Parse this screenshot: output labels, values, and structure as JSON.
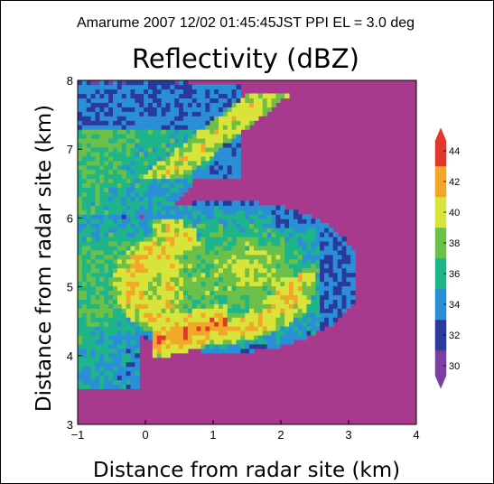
{
  "chart_data": {
    "type": "heatmap",
    "suptitle": "Amarume 2007 12/02 01:45:45JST PPI EL = 3.0 deg",
    "title": "Reflectivity (dBZ)",
    "xlabel": "Distance from radar site (km)",
    "ylabel": "Distance from radar site (km)",
    "xlim": [
      -1,
      4
    ],
    "ylim": [
      3,
      8
    ],
    "x_ticks": [
      -1,
      0,
      1,
      2,
      3,
      4
    ],
    "y_ticks": [
      3,
      4,
      5,
      6,
      7,
      8
    ],
    "x_tick_labels": [
      "−1",
      "0",
      "1",
      "2",
      "3",
      "4"
    ],
    "y_tick_labels": [
      "3",
      "4",
      "5",
      "6",
      "7",
      "8"
    ],
    "colorbar": {
      "min": 29,
      "max": 45,
      "ticks": [
        30,
        32,
        34,
        36,
        38,
        40,
        42,
        44
      ],
      "tick_labels": [
        "30",
        "32",
        "34",
        "36",
        "38",
        "40",
        "42",
        "44"
      ],
      "colors": [
        {
          "from": 29,
          "to": 31,
          "color": "#7b3fa0"
        },
        {
          "from": 31,
          "to": 33,
          "color": "#2a3a9a"
        },
        {
          "from": 33,
          "to": 35,
          "color": "#2a8fd6"
        },
        {
          "from": 35,
          "to": 37,
          "color": "#1fb58a"
        },
        {
          "from": 37,
          "to": 39,
          "color": "#6cc04a"
        },
        {
          "from": 39,
          "to": 41,
          "color": "#d8e43a"
        },
        {
          "from": 41,
          "to": 43,
          "color": "#f3a72a"
        },
        {
          "from": 43,
          "to": 45,
          "color": "#e2372c"
        }
      ]
    },
    "background_color": "#a83a8e",
    "grid": false
  }
}
